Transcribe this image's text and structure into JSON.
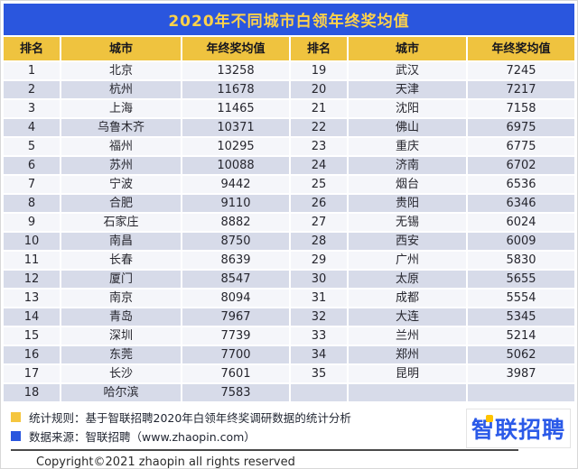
{
  "table": {
    "title": "2020年不同城市白领年终奖均值",
    "headers": [
      "排名",
      "城市",
      "年终奖均值",
      "排名",
      "城市",
      "年终奖均值"
    ]
  },
  "chart_data": {
    "type": "table",
    "title": "2020年不同城市白领年终奖均值",
    "columns": [
      "排名",
      "城市",
      "年终奖均值"
    ],
    "rows": [
      [
        1,
        "北京",
        13258
      ],
      [
        2,
        "杭州",
        11678
      ],
      [
        3,
        "上海",
        11465
      ],
      [
        4,
        "乌鲁木齐",
        10371
      ],
      [
        5,
        "福州",
        10295
      ],
      [
        6,
        "苏州",
        10088
      ],
      [
        7,
        "宁波",
        9442
      ],
      [
        8,
        "合肥",
        9110
      ],
      [
        9,
        "石家庄",
        8882
      ],
      [
        10,
        "南昌",
        8750
      ],
      [
        11,
        "长春",
        8639
      ],
      [
        12,
        "厦门",
        8547
      ],
      [
        13,
        "南京",
        8094
      ],
      [
        14,
        "青岛",
        7967
      ],
      [
        15,
        "深圳",
        7739
      ],
      [
        16,
        "东莞",
        7700
      ],
      [
        17,
        "长沙",
        7601
      ],
      [
        18,
        "哈尔滨",
        7583
      ],
      [
        19,
        "武汉",
        7245
      ],
      [
        20,
        "天津",
        7217
      ],
      [
        21,
        "沈阳",
        7158
      ],
      [
        22,
        "佛山",
        6975
      ],
      [
        23,
        "重庆",
        6775
      ],
      [
        24,
        "济南",
        6702
      ],
      [
        25,
        "烟台",
        6536
      ],
      [
        26,
        "贵阳",
        6346
      ],
      [
        27,
        "无锡",
        6024
      ],
      [
        28,
        "西安",
        6009
      ],
      [
        29,
        "广州",
        5830
      ],
      [
        30,
        "太原",
        5655
      ],
      [
        31,
        "成都",
        5554
      ],
      [
        32,
        "大连",
        5345
      ],
      [
        33,
        "兰州",
        5214
      ],
      [
        34,
        "郑州",
        5062
      ],
      [
        35,
        "昆明",
        3987
      ]
    ],
    "layout": {
      "split_columns": 2,
      "rows_per_column": 18,
      "header_position": "top"
    }
  },
  "legend": {
    "stat_rule": "统计规则：基于智联招聘2020年白领年终奖调研数据的统计分析",
    "data_source": "数据来源：智联招聘（www.zhaopin.com）"
  },
  "logo": {
    "text": "智联招聘"
  },
  "page": {
    "copyright": "Copyright©2021 zhaopin all rights reserved"
  },
  "colors": {
    "title_bar": "#2A56DE",
    "title_text": "#FFD24A",
    "header_bg": "#EFC33F",
    "row_light": "#F5F6FA",
    "row_dark": "#D7DBE9",
    "logo_blue": "#2B5AE8",
    "logo_accent": "#FFC400"
  }
}
